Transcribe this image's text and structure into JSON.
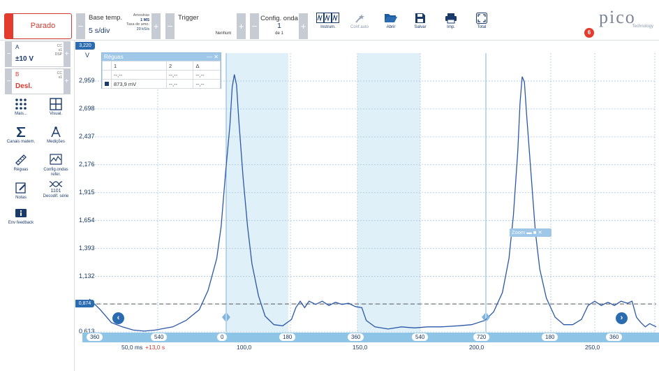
{
  "toolbar": {
    "run_button": "Parado",
    "timebase": {
      "title": "Base temp.",
      "value": "5 s/div"
    },
    "samples": {
      "label_samples": "Amostras",
      "samples_value": "1 MS",
      "label_rate": "Taxa de amo.",
      "rate_value": "20 kS/s"
    },
    "trigger": {
      "title": "Trigger",
      "mode": "Nenhum"
    },
    "waveform": {
      "title": "Config. onda",
      "value": "1",
      "of": "de 1"
    },
    "tools": [
      {
        "label": "Instrum.",
        "icon": "instruments-icon"
      },
      {
        "label": "Conf.auto",
        "icon": "auto-setup-icon"
      },
      {
        "label": "Abrir",
        "icon": "open-folder-icon"
      },
      {
        "label": "Salvar",
        "icon": "save-icon"
      },
      {
        "label": "Imp.",
        "icon": "print-icon"
      },
      {
        "label": "Total",
        "icon": "fullscreen-icon"
      }
    ],
    "logo": {
      "word": "pico",
      "sub": "Technology"
    },
    "notification_count": "6"
  },
  "channels": [
    {
      "name": "A",
      "range": "±10 V",
      "coupling": "CC",
      "probe": "x1",
      "dsp": "DSP",
      "color": "#1a3a6a"
    },
    {
      "name": "B",
      "range": "Desl.",
      "coupling": "CC",
      "probe": "x1",
      "color": "#d23a2f"
    }
  ],
  "side_tools": [
    {
      "label": "Mais...",
      "icon": "more-icon"
    },
    {
      "label": "Visual.",
      "icon": "view-grid-icon"
    },
    {
      "label": "Canais matem.",
      "icon": "math-sigma-icon"
    },
    {
      "label": "Medições",
      "icon": "measurements-icon"
    },
    {
      "label": "Réguas",
      "icon": "ruler-icon"
    },
    {
      "label": "Config.ondas refer.",
      "icon": "reference-waveform-icon"
    },
    {
      "label": "Notas",
      "icon": "notes-icon"
    },
    {
      "label": "Decodif. série",
      "icon": "serial-decode-icon"
    },
    {
      "label": "Env feedback",
      "icon": "feedback-icon"
    }
  ],
  "plot": {
    "y_unit": "V",
    "y_ticks": [
      "2,959",
      "2,698",
      "2,437",
      "2,176",
      "1,915",
      "1,654",
      "1,393",
      "1,132",
      "0,874",
      "0,613"
    ],
    "top_marker": "3,220",
    "ref_marker": "0,874",
    "bottom_marker": "0,613",
    "trace_color": "#2b57a8",
    "accent": "#2b6bb0",
    "shade_color": "#d8ecf8"
  },
  "rulers": {
    "title": "Réguas",
    "head": [
      "",
      "1",
      "2",
      "Δ"
    ],
    "row1": [
      "",
      "--,--",
      "--,--",
      "--,--"
    ],
    "row2": [
      "873,9 mV",
      "--,--",
      "--,--"
    ]
  },
  "zoom": {
    "label": "Zoom"
  },
  "angle_ruler": [
    "360",
    "540",
    "0",
    "180",
    "360",
    "540",
    "720",
    "180",
    "360"
  ],
  "x_axis": {
    "ticks": [
      "50,0 ms",
      "100,0",
      "150,0",
      "200,0",
      "250,0"
    ],
    "offset": "+13,0 s"
  },
  "chart_data": {
    "type": "line",
    "y_ticks": [
      2.959,
      2.698,
      2.437,
      2.176,
      1.915,
      1.654,
      1.393,
      1.132,
      0.874,
      0.613
    ],
    "ylim": [
      0.613,
      3.22
    ],
    "x_ticks": [
      50.0,
      100.0,
      150.0,
      200.0,
      250.0
    ],
    "ref_level": 0.874,
    "grid": true,
    "series": [
      {
        "values": [
          [
            0,
            0.92
          ],
          [
            5,
            0.82
          ],
          [
            10,
            0.7
          ],
          [
            15,
            0.66
          ],
          [
            20,
            0.63
          ],
          [
            25,
            0.62
          ],
          [
            30,
            0.63
          ],
          [
            38,
            0.66
          ],
          [
            44,
            0.72
          ],
          [
            50,
            0.82
          ],
          [
            54,
            1.0
          ],
          [
            58,
            1.3
          ],
          [
            60,
            1.6
          ],
          [
            62,
            2.1
          ],
          [
            64,
            2.55
          ],
          [
            65,
            2.9
          ],
          [
            66,
            3.02
          ],
          [
            67,
            2.92
          ],
          [
            68,
            2.6
          ],
          [
            70,
            2.05
          ],
          [
            72,
            1.6
          ],
          [
            74,
            1.25
          ],
          [
            77,
            0.95
          ],
          [
            80,
            0.76
          ],
          [
            84,
            0.68
          ],
          [
            88,
            0.67
          ],
          [
            92,
            0.73
          ],
          [
            94,
            0.84
          ],
          [
            96,
            0.9
          ],
          [
            98,
            0.84
          ],
          [
            100,
            0.9
          ],
          [
            103,
            0.87
          ],
          [
            106,
            0.9
          ],
          [
            109,
            0.86
          ],
          [
            112,
            0.89
          ],
          [
            115,
            0.87
          ],
          [
            118,
            0.88
          ],
          [
            121,
            0.85
          ],
          [
            124,
            0.84
          ],
          [
            126,
            0.72
          ],
          [
            130,
            0.66
          ],
          [
            136,
            0.64
          ],
          [
            142,
            0.66
          ],
          [
            148,
            0.65
          ],
          [
            154,
            0.66
          ],
          [
            160,
            0.66
          ],
          [
            168,
            0.67
          ],
          [
            174,
            0.68
          ],
          [
            180,
            0.72
          ],
          [
            184,
            0.8
          ],
          [
            188,
            0.98
          ],
          [
            191,
            1.3
          ],
          [
            193,
            1.7
          ],
          [
            195,
            2.3
          ],
          [
            196,
            2.75
          ],
          [
            197,
            3.0
          ],
          [
            198,
            2.95
          ],
          [
            199,
            2.65
          ],
          [
            201,
            2.1
          ],
          [
            203,
            1.55
          ],
          [
            205,
            1.2
          ],
          [
            208,
            0.93
          ],
          [
            212,
            0.75
          ],
          [
            216,
            0.68
          ],
          [
            220,
            0.68
          ],
          [
            224,
            0.73
          ],
          [
            227,
            0.86
          ],
          [
            230,
            0.9
          ],
          [
            233,
            0.86
          ],
          [
            236,
            0.89
          ],
          [
            239,
            0.86
          ],
          [
            242,
            0.9
          ],
          [
            245,
            0.88
          ],
          [
            247,
            0.9
          ],
          [
            249,
            0.75
          ],
          [
            251,
            0.7
          ],
          [
            253,
            0.66
          ],
          [
            255,
            0.69
          ],
          [
            258,
            0.66
          ]
        ]
      }
    ]
  }
}
